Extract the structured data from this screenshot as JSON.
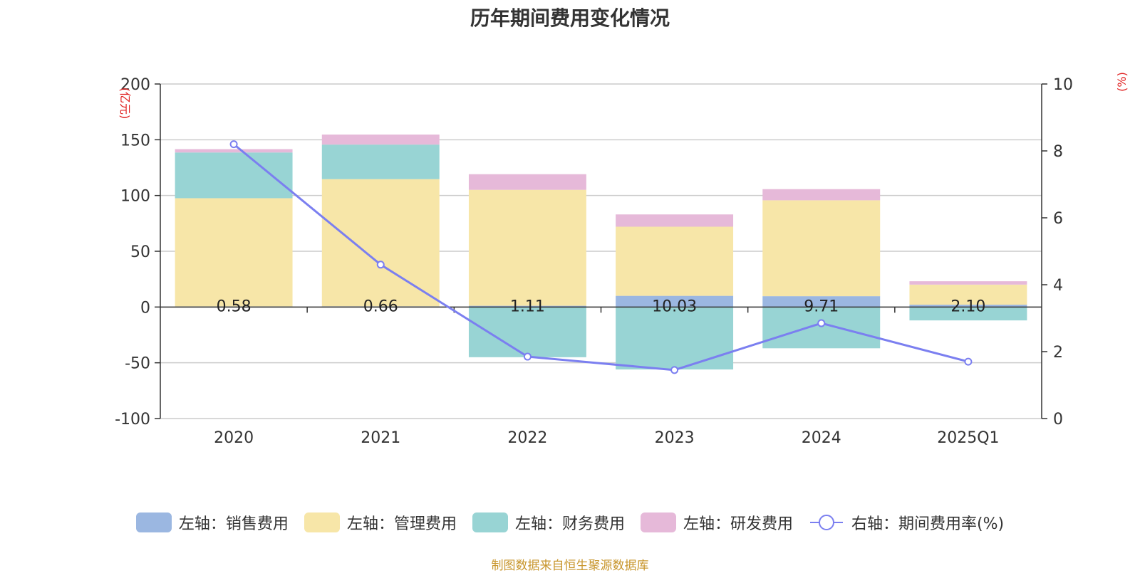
{
  "chart_data": {
    "type": "bar",
    "title": "历年期间费用变化情况",
    "categories": [
      "2020",
      "2021",
      "2022",
      "2023",
      "2024",
      "2025Q1"
    ],
    "left_axis": {
      "unit": "(亿元)",
      "ylim": [
        -100,
        200
      ],
      "ticks": [
        -100,
        -50,
        0,
        50,
        100,
        150,
        200
      ]
    },
    "right_axis": {
      "unit": "(%)",
      "ylim": [
        0,
        10
      ],
      "ticks": [
        0,
        2,
        4,
        6,
        8,
        10
      ]
    },
    "series": [
      {
        "name": "左轴：销售费用",
        "type": "bar",
        "axis": "left",
        "color": "#9bb7e1",
        "values": [
          0.58,
          0.66,
          1.11,
          10.03,
          9.71,
          2.1
        ],
        "labels": [
          "0.58",
          "0.66",
          "1.11",
          "10.03",
          "9.71",
          "2.10"
        ]
      },
      {
        "name": "左轴：管理费用",
        "type": "bar",
        "axis": "left",
        "color": "#f7e6a8",
        "values": [
          97,
          114,
          104,
          62,
          86,
          18
        ]
      },
      {
        "name": "左轴：财务费用",
        "type": "bar",
        "axis": "left",
        "color": "#98d4d4",
        "values": [
          41,
          31,
          -45,
          -56,
          -37,
          -12
        ]
      },
      {
        "name": "左轴：研发费用",
        "type": "bar",
        "axis": "left",
        "color": "#e6b9d9",
        "values": [
          3,
          9,
          14,
          11,
          10,
          3
        ]
      },
      {
        "name": "右轴：期间费用率(%)",
        "type": "line",
        "axis": "right",
        "color": "#7b7ff0",
        "values": [
          8.2,
          4.6,
          1.85,
          1.45,
          2.85,
          1.7
        ]
      }
    ],
    "grid": true,
    "legend_position": "bottom"
  },
  "source_note": "制图数据来自恒生聚源数据库"
}
